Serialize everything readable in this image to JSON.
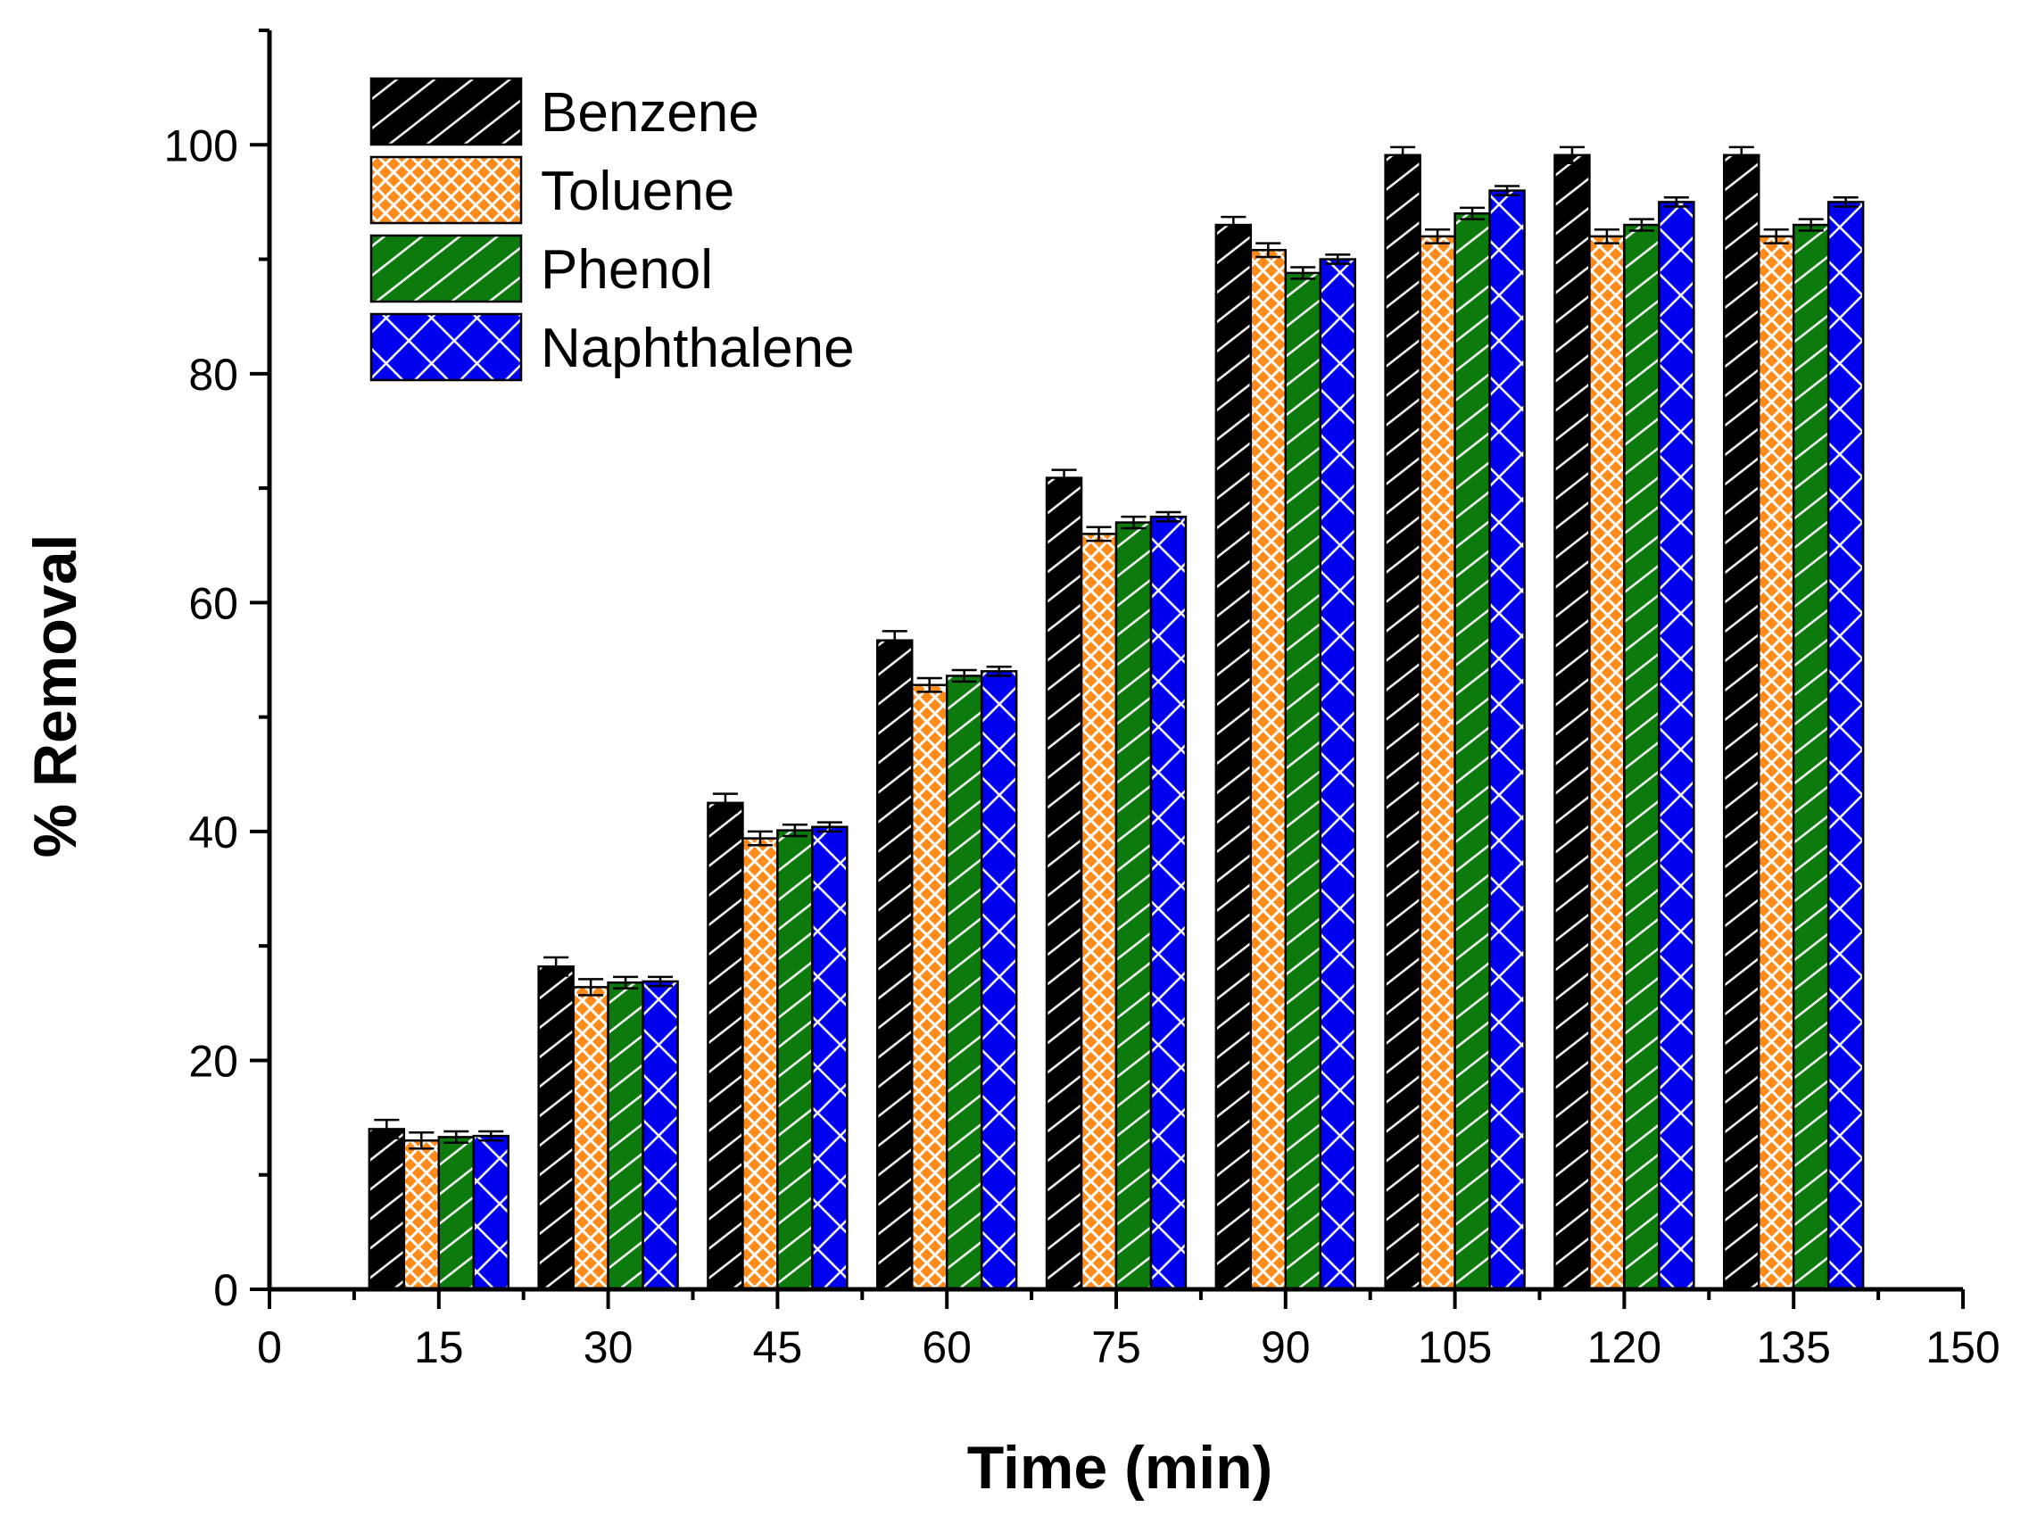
{
  "chart_data": {
    "type": "bar",
    "title": "",
    "xlabel": "Time (min)",
    "ylabel": "% Removal",
    "xlim": [
      0,
      150
    ],
    "ylim": [
      0,
      110
    ],
    "x_ticks": [
      0,
      15,
      30,
      45,
      60,
      75,
      90,
      105,
      120,
      135,
      150
    ],
    "y_ticks": [
      0,
      20,
      40,
      60,
      80,
      100
    ],
    "y_minor_ticks": [
      10,
      30,
      50,
      70,
      90,
      110
    ],
    "categories": [
      15,
      30,
      45,
      60,
      75,
      90,
      105,
      120,
      135
    ],
    "legend_position": "top-left",
    "grid": false,
    "series": [
      {
        "name": "Benzene",
        "color": "#000000",
        "pattern": "diagonal-hatch",
        "values": [
          14,
          28.2,
          42.5,
          56.7,
          70.9,
          93,
          99.1,
          99.1,
          99.1
        ],
        "errors": [
          0.8,
          0.8,
          0.8,
          0.8,
          0.7,
          0.7,
          0.7,
          0.7,
          0.7
        ]
      },
      {
        "name": "Toluene",
        "color": "#ff8c1a",
        "pattern": "crosshatch-dense",
        "values": [
          13,
          26.4,
          39.4,
          52.8,
          66,
          90.8,
          92,
          92,
          92
        ],
        "errors": [
          0.7,
          0.7,
          0.6,
          0.6,
          0.6,
          0.6,
          0.6,
          0.6,
          0.6
        ]
      },
      {
        "name": "Phenol",
        "color": "#0d7a0d",
        "pattern": "diagonal-hatch",
        "values": [
          13.3,
          26.8,
          40.1,
          53.6,
          67,
          88.8,
          94,
          93,
          93
        ],
        "errors": [
          0.5,
          0.5,
          0.5,
          0.5,
          0.5,
          0.5,
          0.5,
          0.5,
          0.5
        ]
      },
      {
        "name": "Naphthalene",
        "color": "#0000ee",
        "pattern": "crosshatch-open",
        "values": [
          13.4,
          26.9,
          40.4,
          54,
          67.5,
          90,
          96,
          95,
          95
        ],
        "errors": [
          0.4,
          0.4,
          0.4,
          0.4,
          0.4,
          0.4,
          0.4,
          0.4,
          0.4
        ]
      }
    ]
  }
}
